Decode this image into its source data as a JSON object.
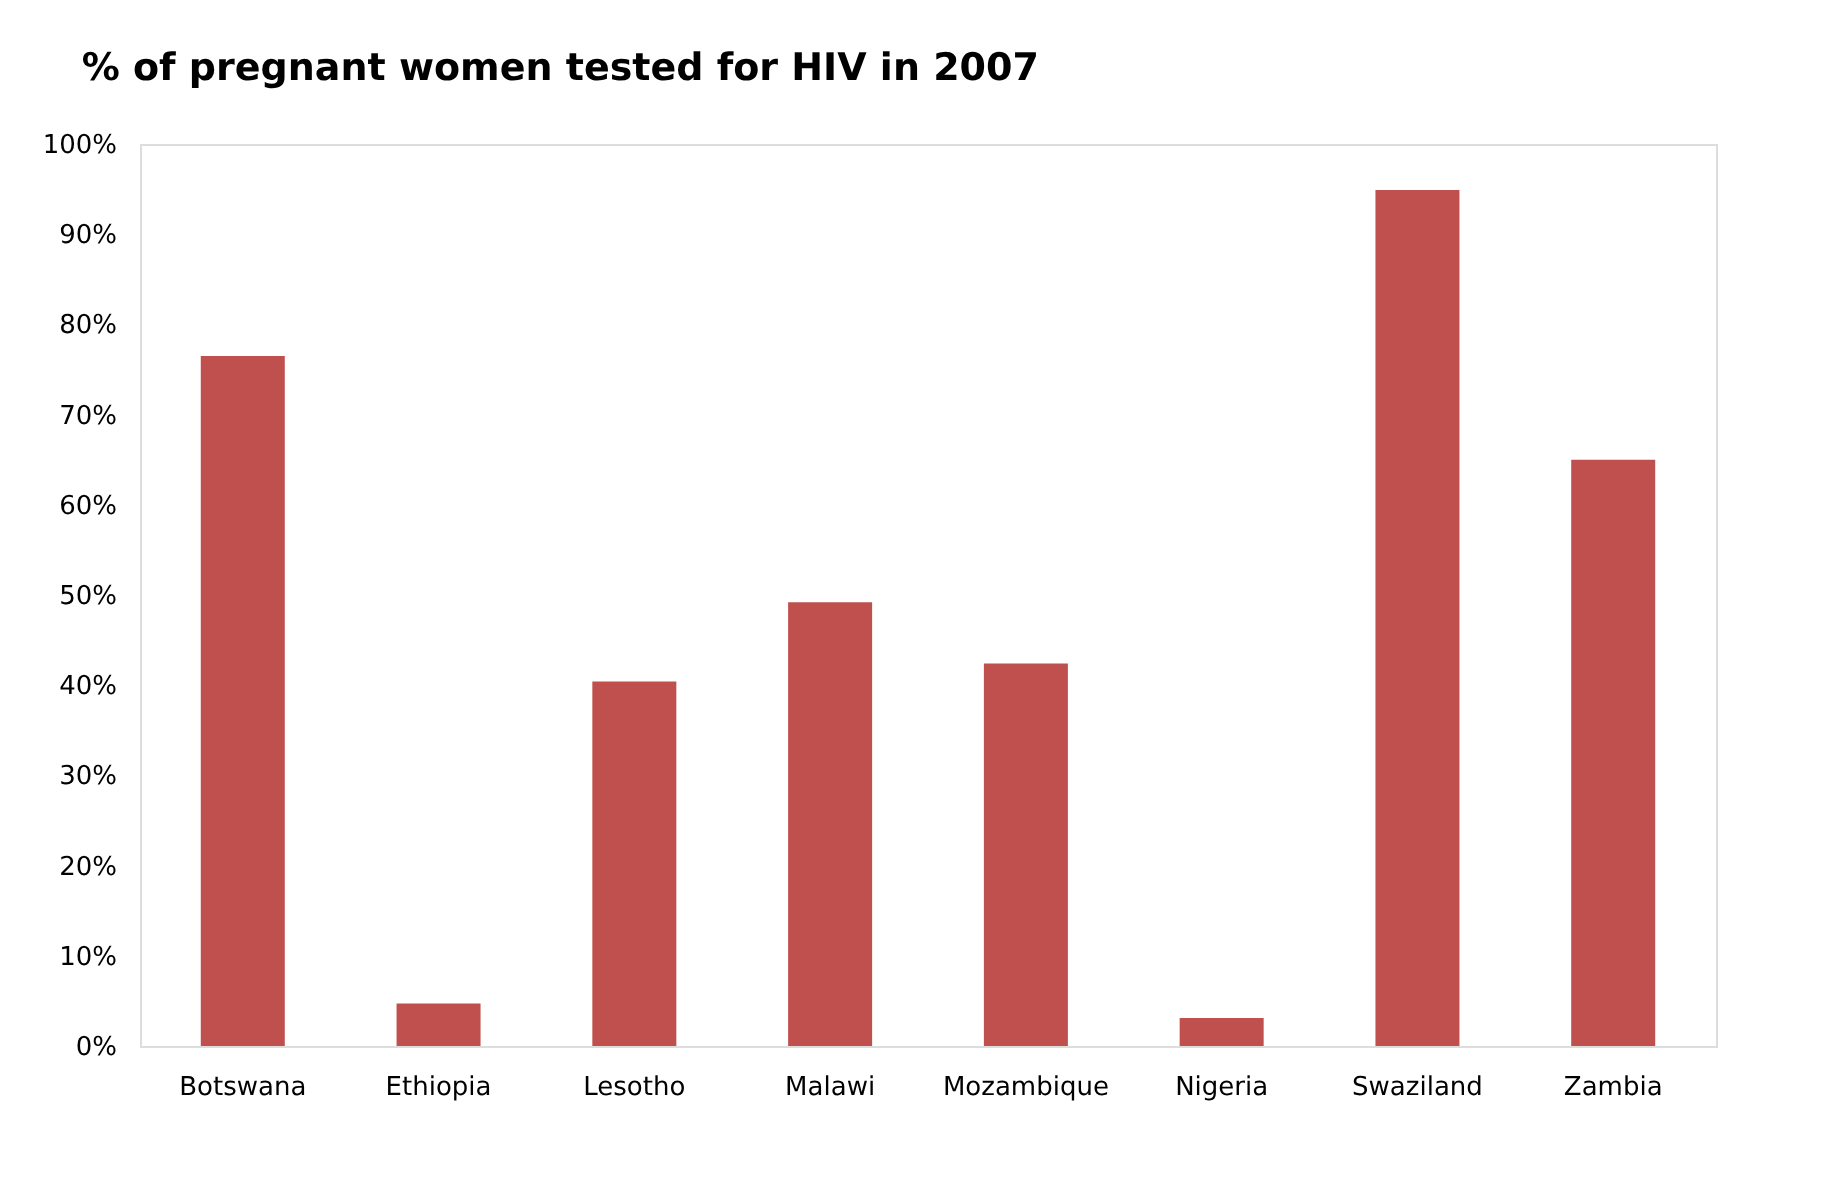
{
  "chart_data": {
    "type": "bar",
    "title": "% of pregnant women tested for HIV in 2007",
    "categories": [
      "Botswana",
      "Ethiopia",
      "Lesotho",
      "Malawi",
      "Mozambique",
      "Nigeria",
      "Swaziland",
      "Zambia"
    ],
    "values": [
      76.5,
      4.7,
      40.4,
      49.2,
      42.4,
      3.1,
      94.9,
      65.0
    ],
    "color": "#c0504d",
    "ylim": [
      0,
      100
    ],
    "yticks": [
      {
        "value": 0,
        "label": "0%"
      },
      {
        "value": 10,
        "label": "10%"
      },
      {
        "value": 20,
        "label": "20%"
      },
      {
        "value": 30,
        "label": "30%"
      },
      {
        "value": 40,
        "label": "40%"
      },
      {
        "value": 50,
        "label": "50%"
      },
      {
        "value": 60,
        "label": "60%"
      },
      {
        "value": 70,
        "label": "70%"
      },
      {
        "value": 80,
        "label": "80%"
      },
      {
        "value": 90,
        "label": "90%"
      },
      {
        "value": 100,
        "label": "100%"
      }
    ],
    "grid": false
  }
}
